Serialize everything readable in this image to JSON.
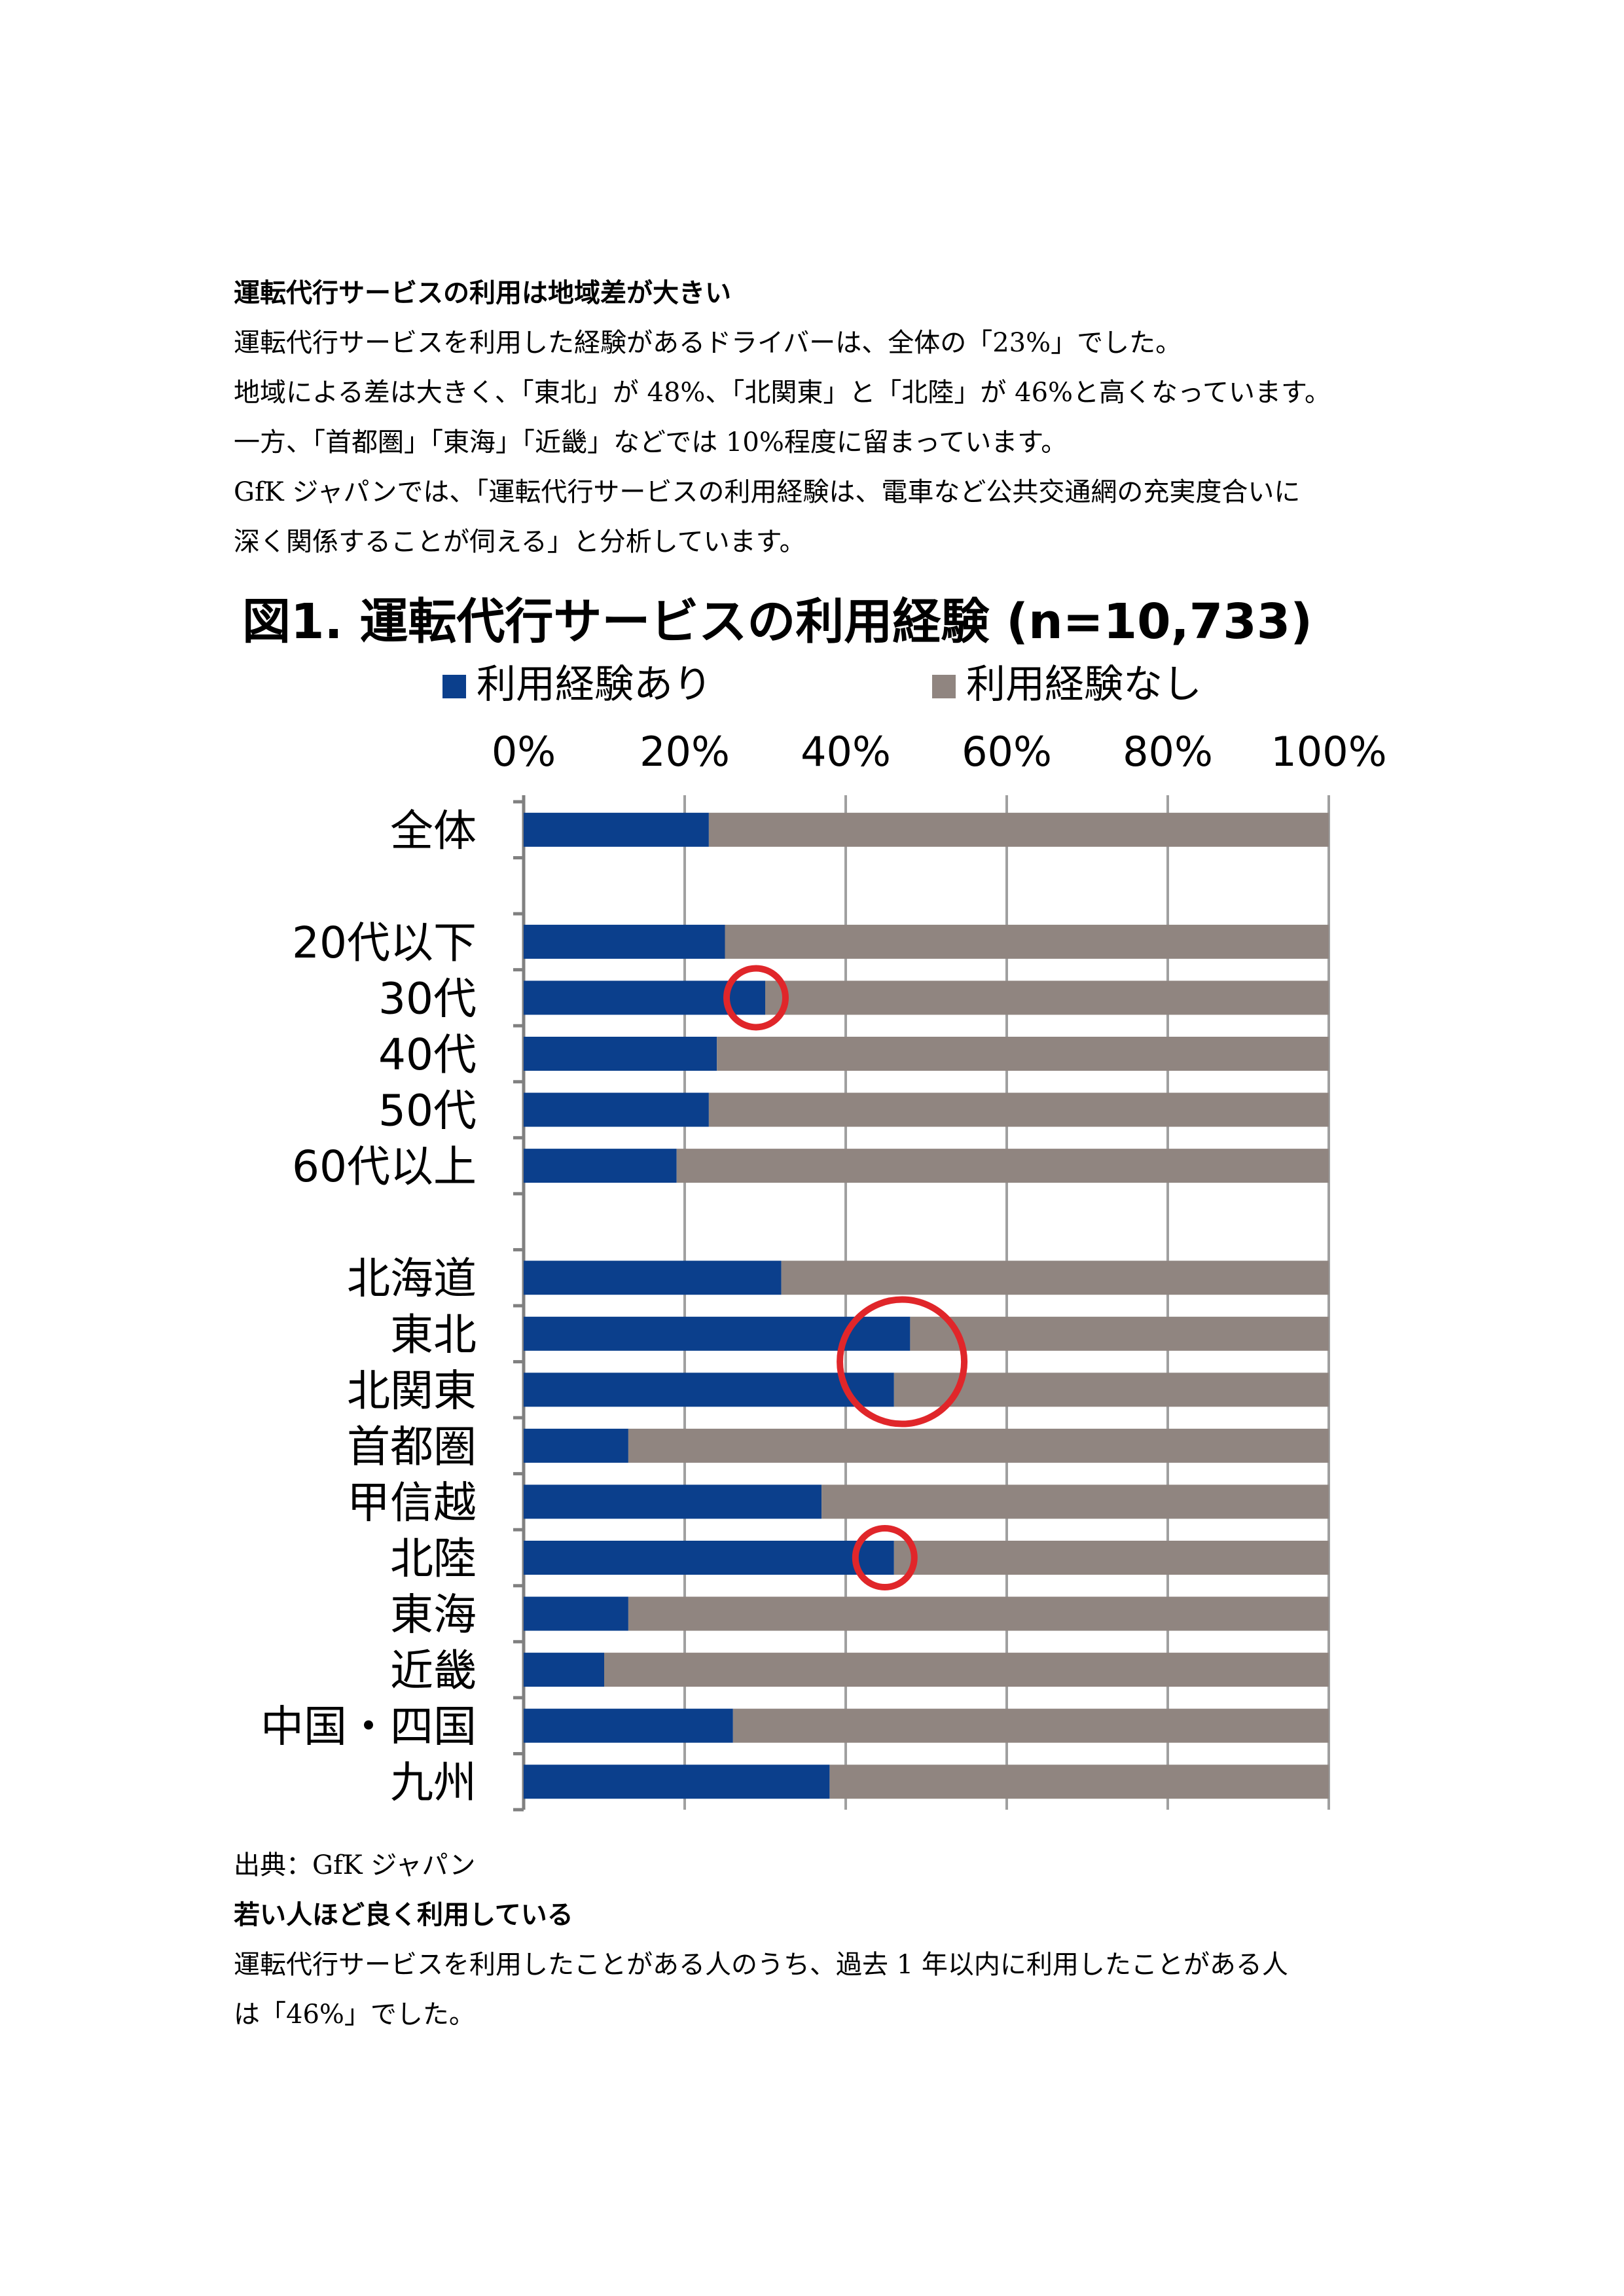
{
  "section1": {
    "heading": "運転代行サービスの利用は地域差が大きい",
    "lines": [
      "運転代行サービスを利用した経験があるドライバーは、全体の「23%」でした。",
      "地域による差は大きく、「東北」が 48%、「北関東」と「北陸」が 46%と高くなっています。",
      "一方、「首都圏」「東海」「近畿」などでは 10%程度に留まっています。",
      "GfK ジャパンでは、「運転代行サービスの利用経験は、電車など公共交通網の充実度合いに",
      "深く関係することが伺える」と分析しています。"
    ]
  },
  "chart_data": {
    "type": "bar",
    "orientation": "horizontal-stacked-100",
    "title": "図1. 運転代行サービスの利用経験 (n=10,733)",
    "series": [
      {
        "name": "利用経験あり",
        "color": "#0b3f8c"
      },
      {
        "name": "利用経験なし",
        "color": "#908580"
      }
    ],
    "x_ticks": [
      "0%",
      "20%",
      "40%",
      "60%",
      "80%",
      "100%"
    ],
    "xlim": [
      0,
      100
    ],
    "grid": true,
    "categories": [
      "全体",
      "",
      "20代以下",
      "30代",
      "40代",
      "50代",
      "60代以上",
      "",
      "北海道",
      "東北",
      "北関東",
      "首都圏",
      "甲信越",
      "北陸",
      "東海",
      "近畿",
      "中国・四国",
      "九州"
    ],
    "values": [
      23,
      null,
      25,
      30,
      24,
      23,
      19,
      null,
      32,
      48,
      46,
      13,
      37,
      46,
      13,
      10,
      26,
      38
    ],
    "highlighted": [
      "30代",
      "東北",
      "北関東",
      "北陸"
    ],
    "highlight_color": "#e0262a"
  },
  "caption": "出典：GfK ジャパン",
  "section2": {
    "heading": "若い人ほど良く利用している",
    "lines": [
      "運転代行サービスを利用したことがある人のうち、過去 1 年以内に利用したことがある人",
      "は「46%」でした。"
    ]
  }
}
